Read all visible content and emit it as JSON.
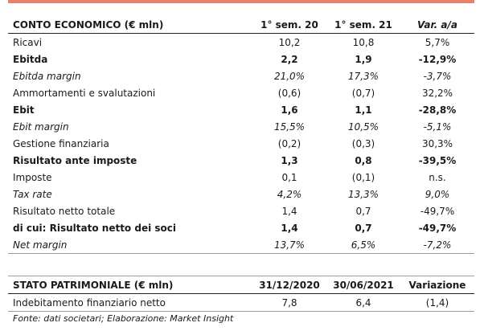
{
  "income": {
    "header": {
      "title": "CONTO ECONOMICO (€ mln)",
      "col1": "1° sem. 20",
      "col2": "1° sem. 21",
      "col3": "Var. a/a"
    },
    "rows": [
      {
        "label": "Ricavi",
        "v1": "10,2",
        "v2": "10,8",
        "v3": "5,7%"
      },
      {
        "label": "Ebitda",
        "v1": "2,2",
        "v2": "1,9",
        "v3": "-12,9%"
      },
      {
        "label": "Ebitda margin",
        "v1": "21,0%",
        "v2": "17,3%",
        "v3": "-3,7%"
      },
      {
        "label": "Ammortamenti e svalutazioni",
        "v1": "(0,6)",
        "v2": "(0,7)",
        "v3": "32,2%"
      },
      {
        "label": "Ebit",
        "v1": "1,6",
        "v2": "1,1",
        "v3": "-28,8%"
      },
      {
        "label": "Ebit margin",
        "v1": "15,5%",
        "v2": "10,5%",
        "v3": "-5,1%"
      },
      {
        "label": "Gestione finanziaria",
        "v1": "(0,2)",
        "v2": "(0,3)",
        "v3": "30,3%"
      },
      {
        "label": "Risultato ante imposte",
        "v1": "1,3",
        "v2": "0,8",
        "v3": "-39,5%"
      },
      {
        "label": "Imposte",
        "v1": "0,1",
        "v2": "(0,1)",
        "v3": "n.s."
      },
      {
        "label": "Tax rate",
        "v1": "4,2%",
        "v2": "13,3%",
        "v3": "9,0%"
      },
      {
        "label": "Risultato netto totale",
        "v1": "1,4",
        "v2": "0,7",
        "v3": "-49,7%"
      },
      {
        "label": "di cui: Risultato netto dei soci",
        "v1": "1,4",
        "v2": "0,7",
        "v3": "-49,7%"
      },
      {
        "label": "Net margin",
        "v1": "13,7%",
        "v2": "6,5%",
        "v3": "-7,2%"
      }
    ]
  },
  "balance": {
    "header": {
      "title": "STATO PATRIMONIALE (€ mln)",
      "col1": "31/12/2020",
      "col2": "30/06/2021",
      "col3": "Variazione"
    },
    "rows": [
      {
        "label": "Indebitamento finanziario netto",
        "v1": "7,8",
        "v2": "6,4",
        "v3": "(1,4)"
      }
    ]
  },
  "source": "Fonte: dati societari; Elaborazione: Market Insight",
  "colors": {
    "accent": "#e8816a",
    "rule": "#222222",
    "text": "#1a1a1a"
  }
}
